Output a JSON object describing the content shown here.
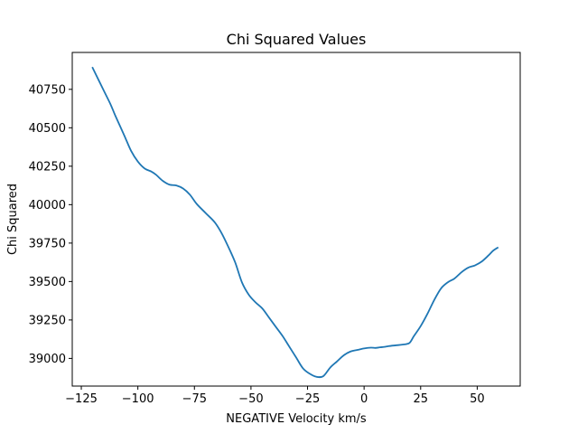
{
  "chart_data": {
    "type": "line",
    "title": "Chi Squared Values",
    "xlabel": "NEGATIVE Velocity km/s",
    "ylabel": "Chi Squared",
    "xlim": [
      -129,
      69
    ],
    "ylim": [
      38820,
      40990
    ],
    "xticks": [
      -125,
      -100,
      -75,
      -50,
      -25,
      0,
      25,
      50
    ],
    "yticks": [
      39000,
      39250,
      39500,
      39750,
      40000,
      40250,
      40500,
      40750
    ],
    "grid": false,
    "series": [
      {
        "color": "#1f77b4",
        "x": [
          -120,
          -115,
          -112,
          -110,
          -106,
          -103,
          -100,
          -97,
          -94,
          -92,
          -89,
          -86,
          -83,
          -80,
          -77,
          -74,
          -70,
          -66,
          -63,
          -60,
          -57,
          -54,
          -51,
          -48,
          -45,
          -42,
          -39,
          -36,
          -33,
          -30,
          -27,
          -24,
          -21,
          -18,
          -15,
          -12,
          -9,
          -6,
          -3,
          0,
          3,
          5,
          7,
          9,
          11,
          14,
          17,
          20,
          22,
          25,
          28,
          31,
          34,
          37,
          40,
          43,
          46,
          49,
          52,
          55,
          57,
          59
        ],
        "y": [
          40890,
          40740,
          40650,
          40580,
          40450,
          40350,
          40280,
          40235,
          40215,
          40195,
          40155,
          40130,
          40125,
          40105,
          40065,
          40005,
          39945,
          39885,
          39815,
          39725,
          39625,
          39495,
          39415,
          39365,
          39325,
          39265,
          39205,
          39145,
          39075,
          39005,
          38935,
          38900,
          38880,
          38885,
          38940,
          38980,
          39020,
          39045,
          39055,
          39065,
          39070,
          39068,
          39072,
          39075,
          39080,
          39085,
          39090,
          39100,
          39145,
          39210,
          39290,
          39380,
          39455,
          39495,
          39520,
          39560,
          39590,
          39605,
          39630,
          39670,
          39700,
          39720
        ]
      }
    ]
  }
}
